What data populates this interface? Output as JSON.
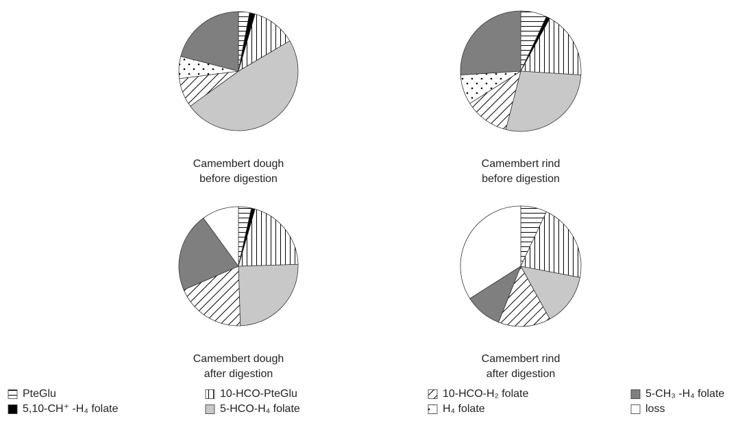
{
  "chart_data": [
    {
      "type": "pie",
      "title": [
        "Camembert dough",
        "before digestion"
      ],
      "values": [
        3,
        1.5,
        12,
        48.5,
        8,
        6,
        21,
        0
      ]
    },
    {
      "type": "pie",
      "title": [
        "Camembert rind",
        "before digestion"
      ],
      "values": [
        7,
        1,
        18,
        28,
        12,
        8,
        26,
        0
      ]
    },
    {
      "type": "pie",
      "title": [
        "Camembert dough",
        "after digestion"
      ],
      "values": [
        3.5,
        1,
        20,
        25,
        19,
        0,
        21.5,
        10
      ]
    },
    {
      "type": "pie",
      "title": [
        "Camembert rind",
        "after digestion"
      ],
      "values": [
        7,
        0,
        21,
        14,
        14,
        0,
        10,
        34
      ]
    }
  ],
  "legend": {
    "categories": [
      "PteGlu",
      "5,10-CH⁺ -H₄ folate",
      "10-HCO-PteGlu",
      "5-HCO-H₄ folate",
      "10-HCO-H₂ folate",
      "H₄ folate",
      "5-CH₃ -H₄ folate",
      "loss"
    ],
    "colors": [
      "url(#hl)",
      "#000000",
      "url(#vl)",
      "#c8c8c8",
      "url(#dg)",
      "url(#dt)",
      "#7f7f7f",
      "#ffffff"
    ]
  }
}
